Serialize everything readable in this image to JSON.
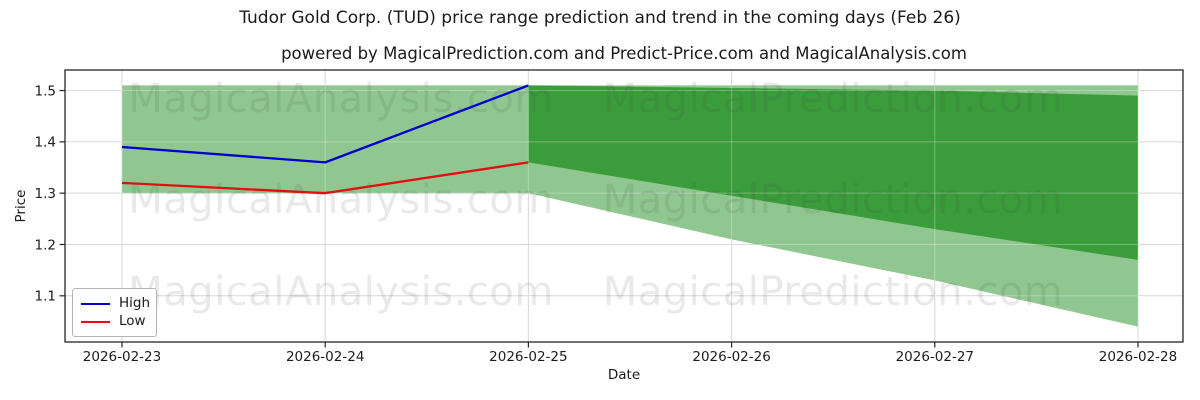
{
  "header": {
    "title": "Tudor Gold Corp. (TUD) price range prediction and trend in the coming days (Feb 26)",
    "subtitle": "powered by MagicalPrediction.com and Predict-Price.com and MagicalAnalysis.com"
  },
  "watermark": {
    "left": "MagicalAnalysis.com",
    "right": "MagicalPrediction.com"
  },
  "chart_data": {
    "type": "line",
    "x": [
      "2026-02-23",
      "2026-02-24",
      "2026-02-25",
      "2026-02-26",
      "2026-02-27",
      "2026-02-28"
    ],
    "series": [
      {
        "name": "High",
        "color": "#0000cd",
        "values": [
          1.39,
          1.36,
          1.51
        ]
      },
      {
        "name": "Low",
        "color": "#e01010",
        "values": [
          1.32,
          1.3,
          1.36
        ]
      }
    ],
    "bands": [
      {
        "name": "prediction-range-outer",
        "color": "#90c790",
        "start_index": 0,
        "upper": [
          1.51,
          1.51,
          1.51,
          1.51,
          1.51,
          1.51
        ],
        "lower": [
          1.3,
          1.3,
          1.3,
          1.21,
          1.13,
          1.04
        ]
      },
      {
        "name": "prediction-range-inner",
        "color": "#3b9c3b",
        "start_index": 2,
        "upper": [
          1.51,
          1.505,
          1.5,
          1.49
        ],
        "lower": [
          1.36,
          1.295,
          1.23,
          1.17
        ]
      }
    ],
    "xlabel": "Date",
    "ylabel": "Price",
    "yticks": [
      1.1,
      1.2,
      1.3,
      1.4,
      1.5
    ],
    "ylim": [
      1.01,
      1.54
    ],
    "grid": true,
    "legend": {
      "position": "lower left",
      "entries": [
        {
          "label": "High",
          "color": "#0000cd"
        },
        {
          "label": "Low",
          "color": "#e01010"
        }
      ]
    }
  }
}
